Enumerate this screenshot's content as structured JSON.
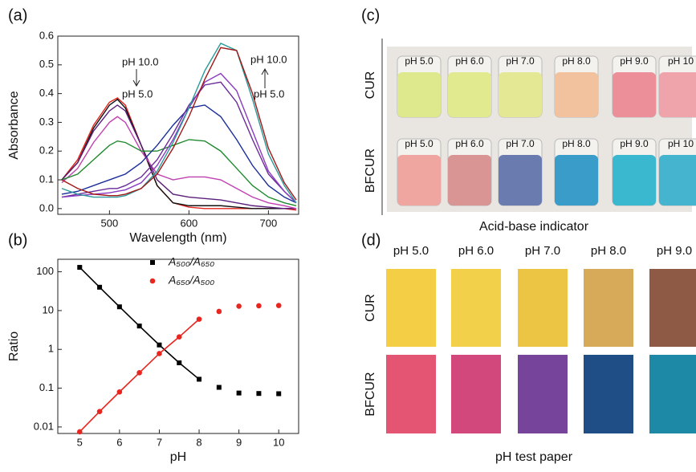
{
  "chart_data": [
    {
      "type": "line",
      "panel_label": "(a)",
      "x_label": "Wavelength (nm)",
      "y_label": "Absorbance",
      "x": [
        440,
        460,
        480,
        500,
        510,
        520,
        540,
        560,
        580,
        600,
        620,
        640,
        660,
        680,
        700,
        720,
        735
      ],
      "xlim": [
        435,
        738
      ],
      "xticks": [
        500,
        600,
        700
      ],
      "ylim": [
        -0.02,
        0.6
      ],
      "yticks": [
        {
          "value": 0,
          "label": "0.0"
        },
        0.1,
        0.2,
        0.3,
        0.4,
        0.5,
        0.6
      ],
      "annotations": [
        "pH 10.0",
        "pH 5.0",
        "pH 10.0",
        "pH 5.0"
      ],
      "series": [
        {
          "color": "#e0231c",
          "values": [
            0.1,
            0.17,
            0.29,
            0.37,
            0.385,
            0.36,
            0.22,
            0.08,
            0.02,
            0.005,
            0,
            0,
            0,
            0,
            0,
            0,
            -0.005
          ]
        },
        {
          "color": "#111111",
          "values": [
            0.1,
            0.16,
            0.28,
            0.36,
            0.38,
            0.35,
            0.22,
            0.08,
            0.02,
            0.01,
            0.01,
            0.01,
            0.005,
            0,
            0,
            0,
            0
          ]
        },
        {
          "color": "#5a1f7a",
          "values": [
            0.1,
            0.16,
            0.27,
            0.34,
            0.36,
            0.34,
            0.22,
            0.1,
            0.05,
            0.04,
            0.035,
            0.03,
            0.02,
            0.01,
            0.005,
            0,
            0
          ]
        },
        {
          "color": "#c040b0",
          "values": [
            0.09,
            0.14,
            0.23,
            0.3,
            0.32,
            0.3,
            0.2,
            0.12,
            0.1,
            0.11,
            0.11,
            0.1,
            0.07,
            0.04,
            0.02,
            0.01,
            0
          ]
        },
        {
          "color": "#1f8a2e",
          "values": [
            0.1,
            0.12,
            0.17,
            0.22,
            0.235,
            0.23,
            0.2,
            0.2,
            0.22,
            0.24,
            0.235,
            0.2,
            0.14,
            0.08,
            0.04,
            0.02,
            0.01
          ]
        },
        {
          "color": "#1a2e9a",
          "values": [
            0.05,
            0.06,
            0.08,
            0.1,
            0.11,
            0.12,
            0.16,
            0.22,
            0.29,
            0.35,
            0.36,
            0.32,
            0.24,
            0.15,
            0.08,
            0.04,
            0.02
          ]
        },
        {
          "color": "#6a2a9a",
          "values": [
            0.04,
            0.05,
            0.06,
            0.07,
            0.07,
            0.08,
            0.11,
            0.17,
            0.26,
            0.36,
            0.43,
            0.44,
            0.37,
            0.24,
            0.12,
            0.06,
            0.02
          ]
        },
        {
          "color": "#8a3ac0",
          "values": [
            0.04,
            0.045,
            0.05,
            0.055,
            0.06,
            0.065,
            0.09,
            0.15,
            0.24,
            0.35,
            0.44,
            0.47,
            0.41,
            0.27,
            0.13,
            0.06,
            0.02
          ]
        },
        {
          "color": "#2a9a9a",
          "values": [
            0.07,
            0.05,
            0.04,
            0.04,
            0.04,
            0.045,
            0.07,
            0.13,
            0.23,
            0.35,
            0.48,
            0.575,
            0.55,
            0.38,
            0.19,
            0.08,
            0.02
          ]
        },
        {
          "color": "#a01818",
          "values": [
            0.1,
            0.07,
            0.05,
            0.045,
            0.045,
            0.05,
            0.07,
            0.12,
            0.21,
            0.32,
            0.45,
            0.56,
            0.55,
            0.4,
            0.21,
            0.09,
            0.03
          ]
        }
      ]
    },
    {
      "type": "scatter",
      "panel_label": "(b)",
      "x_label": "pH",
      "y_label": "Ratio",
      "ylog": true,
      "x": [
        5,
        5.5,
        6,
        6.5,
        7,
        7.5,
        8,
        8.5,
        9,
        9.5,
        10
      ],
      "xlim": [
        4.45,
        10.5
      ],
      "xticks": [
        5,
        6,
        7,
        8,
        9,
        10
      ],
      "ylim": [
        0.0068,
        210
      ],
      "yticks": [
        0.01,
        0.1,
        1,
        10,
        100
      ],
      "fit_x": [
        5,
        8
      ],
      "series": [
        {
          "name": "A₅₀₀/A₆₅₀",
          "color": "#000000",
          "marker": "square",
          "values": [
            130,
            40,
            12.5,
            4,
            1.3,
            0.45,
            0.17,
            0.105,
            0.075,
            0.073,
            0.072
          ]
        },
        {
          "name": "A₆₅₀/A₅₀₀",
          "color": "#e8251f",
          "marker": "circle",
          "values": [
            0.0075,
            0.025,
            0.08,
            0.25,
            0.78,
            2.1,
            6,
            9.5,
            13,
            13.3,
            13.5
          ]
        }
      ]
    }
  ],
  "photo_panel": {
    "panel_label": "(c)",
    "caption": "Acid-base indicator",
    "rows": [
      {
        "label": "CUR",
        "vials": [
          {
            "label": "pH 5.0",
            "color": "#dde98c"
          },
          {
            "label": "pH 6.0",
            "color": "#e2ea8f"
          },
          {
            "label": "pH 7.0",
            "color": "#e4e894"
          },
          {
            "label": "pH 8.0",
            "color": "#f2c19e"
          },
          {
            "label": "pH 9.0",
            "color": "#ec8f98"
          },
          {
            "label": "pH 10",
            "color": "#eea4aa"
          }
        ]
      },
      {
        "label": "BFCUR",
        "vials": [
          {
            "label": "pH 5.0",
            "color": "#f0a6a0"
          },
          {
            "label": "pH 6.0",
            "color": "#d99494"
          },
          {
            "label": "pH 7.0",
            "color": "#6a7bb0"
          },
          {
            "label": "pH 8.0",
            "color": "#3a9cc8"
          },
          {
            "label": "pH 9.0",
            "color": "#3ab8cf"
          },
          {
            "label": "pH 10",
            "color": "#45b5cf"
          }
        ]
      }
    ]
  },
  "paper_panel": {
    "panel_label": "(d)",
    "caption": "pH test paper",
    "columns": [
      "pH 5.0",
      "pH 6.0",
      "pH 7.0",
      "pH 8.0",
      "pH 9.0"
    ],
    "rows": [
      {
        "label": "CUR",
        "colors": [
          "#f4cf46",
          "#f3d04a",
          "#ecc544",
          "#d7aa5a",
          "#8e5a45"
        ]
      },
      {
        "label": "BFCUR",
        "colors": [
          "#e35573",
          "#d3487c",
          "#76449a",
          "#1f4e86",
          "#1e89a6"
        ]
      }
    ]
  }
}
